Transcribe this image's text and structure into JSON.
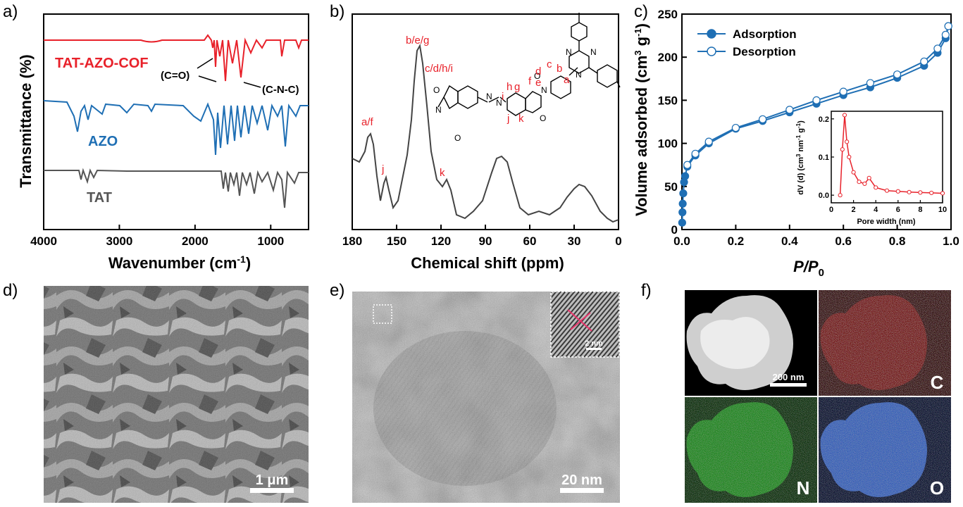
{
  "panels": {
    "a": {
      "label": "a)",
      "xlabel_main": "Wavenumber (cm",
      "xlabel_sup": "-1",
      "xlabel_end": ")",
      "ylabel": "Transmittance (%)",
      "xticks": [
        "4000",
        "3000",
        "2000",
        "1000"
      ],
      "series": [
        {
          "name": "TAT-AZO-COF",
          "color": "#e8212a"
        },
        {
          "name": "AZO",
          "color": "#1f6fb4"
        },
        {
          "name": "TAT",
          "color": "#555555"
        }
      ],
      "annotations": [
        "(C=O)",
        "(C-N-C)"
      ]
    },
    "b": {
      "label": "b)",
      "xlabel": "Chemical shift (ppm)",
      "xticks": [
        "180",
        "150",
        "120",
        "90",
        "60",
        "30",
        "0"
      ],
      "peak_labels": [
        "b/e/g",
        "c/d/h/i",
        "a/f",
        "j",
        "k"
      ],
      "structure_labels": [
        "a",
        "b",
        "c",
        "d",
        "e",
        "f",
        "g",
        "h",
        "i",
        "j",
        "k"
      ],
      "atoms": [
        "N",
        "N",
        "N",
        "N",
        "N",
        "N",
        "N",
        "O",
        "O",
        "O",
        "O"
      ]
    },
    "c": {
      "label": "c)",
      "xlabel_italic": "P/P",
      "xlabel_sub": "0",
      "ylabel_main": "Volume adsorbed (cm",
      "ylabel_sup1": "3",
      "ylabel_mid": " g",
      "ylabel_sup2": "-1",
      "ylabel_end": ")",
      "xticks": [
        "0.0",
        "0.2",
        "0.4",
        "0.6",
        "0.8",
        "1.0"
      ],
      "yticks": [
        "0",
        "50",
        "100",
        "150",
        "200",
        "250"
      ],
      "legend": [
        "Adsorption",
        "Desorption"
      ],
      "color": "#1f6fb4",
      "inset": {
        "xlabel": "Pore width (nm)",
        "ylabel_main": "dV (d) (cm",
        "ylabel_sup1": "3",
        "ylabel_mid": " nm",
        "ylabel_sup2": "-1",
        "ylabel_mid2": " g",
        "ylabel_sup3": "-1",
        "ylabel_end": ")",
        "xticks": [
          "0",
          "2",
          "4",
          "6",
          "8",
          "10"
        ],
        "yticks": [
          "0.0",
          "0.1",
          "0.2"
        ],
        "color": "#e8212a"
      }
    },
    "d": {
      "label": "d)",
      "scale": "1 μm"
    },
    "e": {
      "label": "e)",
      "scale": "20 nm",
      "inset_scale": "2 nm"
    },
    "f": {
      "label": "f)",
      "scale": "200 nm",
      "maps": [
        "C",
        "N",
        "O"
      ]
    }
  },
  "chart_data": [
    {
      "type": "line",
      "xlabel": "Wavenumber (cm-1)",
      "ylabel": "Transmittance (%)",
      "xlim": [
        4000,
        500
      ],
      "series": [
        {
          "name": "TAT-AZO-COF",
          "x": [
            4000,
            3000,
            2000,
            1780,
            1720,
            1600,
            1500,
            1380,
            1200,
            1000,
            830,
            500
          ],
          "y": [
            100,
            98,
            100,
            90,
            60,
            80,
            62,
            64,
            95,
            95,
            88,
            92
          ]
        },
        {
          "name": "AZO",
          "x": [
            4000,
            3500,
            3200,
            2700,
            2000,
            1720,
            1640,
            1500,
            1300,
            1100,
            850,
            500
          ],
          "y": [
            100,
            70,
            75,
            97,
            80,
            40,
            45,
            55,
            50,
            70,
            55,
            90
          ]
        },
        {
          "name": "TAT",
          "x": [
            4000,
            3450,
            3300,
            3000,
            1800,
            1620,
            1500,
            1400,
            1200,
            1000,
            820,
            500
          ],
          "y": [
            100,
            90,
            92,
            98,
            100,
            60,
            65,
            62,
            70,
            75,
            60,
            85
          ]
        }
      ]
    },
    {
      "type": "line",
      "xlabel": "Chemical shift (ppm)",
      "xlim": [
        180,
        0
      ],
      "x": [
        180,
        168,
        158,
        136,
        118,
        100,
        82,
        60,
        45,
        28,
        10,
        0
      ],
      "y": [
        0.45,
        0.52,
        0.3,
        1.0,
        0.25,
        0.04,
        0.42,
        0.06,
        0.05,
        0.22,
        0.04,
        0.0
      ]
    },
    {
      "type": "scatter",
      "xlabel": "P/P0",
      "ylabel": "Volume adsorbed (cm3 g-1)",
      "xlim": [
        0,
        1.0
      ],
      "ylim": [
        0,
        250
      ],
      "series": [
        {
          "name": "Adsorption",
          "x": [
            0.001,
            0.002,
            0.003,
            0.005,
            0.008,
            0.012,
            0.02,
            0.05,
            0.1,
            0.2,
            0.3,
            0.4,
            0.5,
            0.6,
            0.7,
            0.8,
            0.9,
            0.95,
            0.98,
            0.99
          ],
          "y": [
            8,
            20,
            30,
            42,
            55,
            62,
            73,
            86,
            100,
            117,
            126,
            136,
            146,
            156,
            165,
            176,
            190,
            205,
            222,
            236
          ]
        },
        {
          "name": "Desorption",
          "x": [
            0.99,
            0.98,
            0.95,
            0.9,
            0.8,
            0.7,
            0.6,
            0.5,
            0.4,
            0.3,
            0.2,
            0.1,
            0.05,
            0.02
          ],
          "y": [
            236,
            226,
            210,
            195,
            180,
            170,
            160,
            150,
            139,
            128,
            118,
            102,
            88,
            75
          ]
        }
      ]
    },
    {
      "type": "line",
      "xlabel": "Pore width (nm)",
      "ylabel": "dV (d) (cm3 nm-1 g-1)",
      "xlim": [
        0,
        10
      ],
      "ylim": [
        -0.02,
        0.22
      ],
      "x": [
        0.8,
        1.0,
        1.2,
        1.4,
        1.6,
        2.0,
        2.5,
        3.0,
        3.4,
        4.0,
        5.0,
        6.0,
        7.0,
        8.0,
        9.0,
        10.0
      ],
      "y": [
        0.0,
        0.12,
        0.21,
        0.14,
        0.1,
        0.06,
        0.035,
        0.03,
        0.045,
        0.02,
        0.012,
        0.01,
        0.008,
        0.007,
        0.006,
        0.005
      ]
    }
  ]
}
